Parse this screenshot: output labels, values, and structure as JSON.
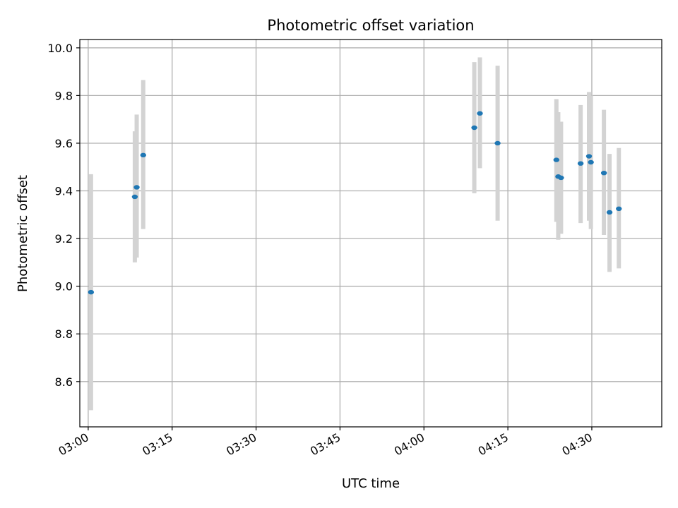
{
  "chart_data": {
    "type": "scatter",
    "title": "Photometric offset variation",
    "xlabel": "UTC time",
    "ylabel": "Photometric offset",
    "grid": true,
    "x_axis": {
      "kind": "time",
      "unit": "HH:MM",
      "range": [
        "02:58:30",
        "04:42:30"
      ],
      "ticks": [
        "03:00",
        "03:15",
        "03:30",
        "03:45",
        "04:00",
        "04:15",
        "04:30"
      ]
    },
    "y_axis": {
      "range": [
        8.41,
        10.035
      ],
      "ticks": [
        8.6,
        8.8,
        9.0,
        9.2,
        9.4,
        9.6,
        9.8,
        10.0
      ],
      "tick_labels": [
        "8.6",
        "8.8",
        "9.0",
        "9.2",
        "9.4",
        "9.6",
        "9.8",
        "10.0"
      ]
    },
    "colors": {
      "marker": "#1f77b4",
      "errorbar": "#d3d3d3",
      "grid": "#b0b0b0"
    },
    "points": [
      {
        "x": "03:00:30",
        "y": 8.975,
        "ylow": 8.48,
        "yhigh": 9.47
      },
      {
        "x": "03:08:20",
        "y": 9.375,
        "ylow": 9.1,
        "yhigh": 9.65
      },
      {
        "x": "03:08:40",
        "y": 9.415,
        "ylow": 9.12,
        "yhigh": 9.72
      },
      {
        "x": "03:09:50",
        "y": 9.55,
        "ylow": 9.24,
        "yhigh": 9.865
      },
      {
        "x": "04:09:00",
        "y": 9.665,
        "ylow": 9.39,
        "yhigh": 9.94
      },
      {
        "x": "04:10:00",
        "y": 9.725,
        "ylow": 9.495,
        "yhigh": 9.96
      },
      {
        "x": "04:13:10",
        "y": 9.6,
        "ylow": 9.275,
        "yhigh": 9.925
      },
      {
        "x": "04:23:40",
        "y": 9.53,
        "ylow": 9.27,
        "yhigh": 9.785
      },
      {
        "x": "04:24:00",
        "y": 9.46,
        "ylow": 9.195,
        "yhigh": 9.73
      },
      {
        "x": "04:24:30",
        "y": 9.455,
        "ylow": 9.22,
        "yhigh": 9.69
      },
      {
        "x": "04:28:00",
        "y": 9.515,
        "ylow": 9.265,
        "yhigh": 9.76
      },
      {
        "x": "04:29:30",
        "y": 9.545,
        "ylow": 9.275,
        "yhigh": 9.815
      },
      {
        "x": "04:29:50",
        "y": 9.52,
        "ylow": 9.24,
        "yhigh": 9.8
      },
      {
        "x": "04:32:10",
        "y": 9.475,
        "ylow": 9.215,
        "yhigh": 9.74
      },
      {
        "x": "04:33:10",
        "y": 9.31,
        "ylow": 9.06,
        "yhigh": 9.555
      },
      {
        "x": "04:34:50",
        "y": 9.325,
        "ylow": 9.075,
        "yhigh": 9.58
      }
    ]
  }
}
